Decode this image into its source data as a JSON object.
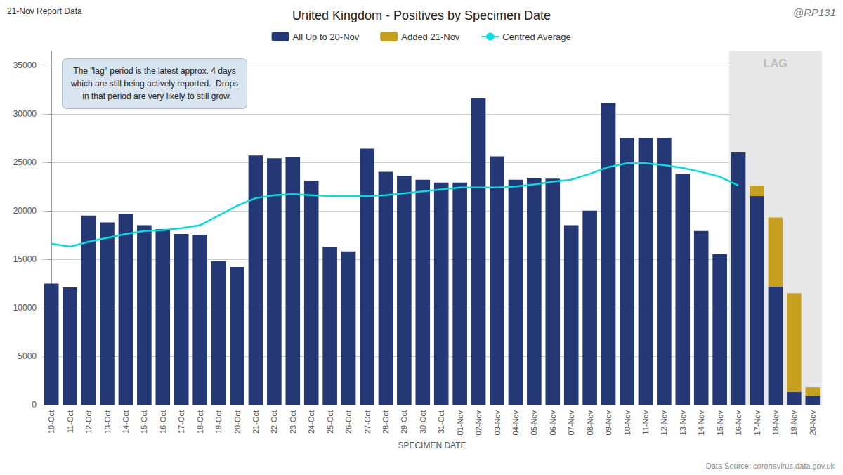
{
  "chart_data": {
    "type": "bar",
    "title": "United Kingdom - Positives by Specimen Date",
    "x_label": "SPECIMEN DATE",
    "categories": [
      "10-Oct",
      "11-Oct",
      "12-Oct",
      "13-Oct",
      "14-Oct",
      "15-Oct",
      "16-Oct",
      "17-Oct",
      "18-Oct",
      "19-Oct",
      "20-Oct",
      "21-Oct",
      "22-Oct",
      "23-Oct",
      "24-Oct",
      "25-Oct",
      "26-Oct",
      "27-Oct",
      "28-Oct",
      "29-Oct",
      "30-Oct",
      "31-Oct",
      "01-Nov",
      "02-Nov",
      "03-Nov",
      "04-Nov",
      "05-Nov",
      "06-Nov",
      "07-Nov",
      "08-Nov",
      "09-Nov",
      "10-Nov",
      "11-Nov",
      "12-Nov",
      "13-Nov",
      "14-Nov",
      "15-Nov",
      "16-Nov",
      "17-Nov",
      "18-Nov",
      "19-Nov",
      "20-Nov"
    ],
    "series": [
      {
        "name": "All Up to 20-Nov",
        "color": "#253876",
        "values": [
          12500,
          12100,
          19500,
          18800,
          19700,
          18500,
          18100,
          17600,
          17500,
          14800,
          14200,
          25700,
          25400,
          25500,
          23100,
          16300,
          15800,
          26400,
          24000,
          23600,
          23200,
          22900,
          22900,
          31600,
          25600,
          23200,
          23400,
          23300,
          18500,
          20000,
          31100,
          27500,
          27500,
          27500,
          23800,
          17900,
          15500,
          26000,
          21500,
          12200,
          1300,
          900
        ]
      },
      {
        "name": "Added 21-Nov",
        "color": "#C8A020",
        "values": [
          0,
          0,
          0,
          0,
          0,
          0,
          0,
          0,
          0,
          0,
          0,
          0,
          0,
          0,
          0,
          0,
          0,
          0,
          0,
          0,
          0,
          0,
          0,
          0,
          0,
          0,
          0,
          0,
          0,
          0,
          0,
          0,
          0,
          0,
          0,
          0,
          0,
          0,
          1100,
          7100,
          10200,
          900
        ]
      },
      {
        "name": "Centred Average",
        "type": "line",
        "color": "#00DEDE",
        "values": [
          16600,
          16300,
          16800,
          17200,
          17600,
          17900,
          18000,
          18200,
          18500,
          19500,
          20500,
          21300,
          21600,
          21700,
          21600,
          21500,
          21500,
          21500,
          21600,
          21800,
          22000,
          22200,
          22400,
          22400,
          22400,
          22500,
          22700,
          23000,
          23200,
          23800,
          24500,
          24900,
          24900,
          24700,
          24400,
          24000,
          23500,
          22600,
          null,
          null,
          null,
          null
        ]
      }
    ],
    "stacked": true,
    "ylim": [
      0,
      36500
    ],
    "yticks": [
      0,
      5000,
      10000,
      15000,
      20000,
      25000,
      30000,
      35000
    ],
    "grid": true,
    "legend": "top",
    "span": {
      "from": "16-Nov",
      "to": "20-Nov",
      "label": "LAG",
      "color": "#E8E8E8"
    },
    "annotation": "The \"lag\" period is the latest approx. 4 days\nwhich are still being actively reported.  Drops\n  in that period are very likely to still grow.",
    "note_left": "21-Nov Report Data",
    "note_right": "@RP131",
    "source": "Data Source: coronavirus.data.gov.uk"
  }
}
